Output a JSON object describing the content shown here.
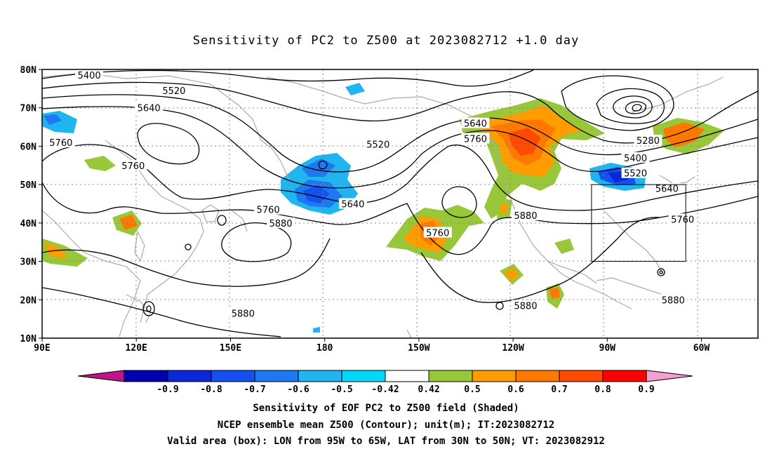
{
  "title": "Sensitivity of PC2 to Z500 at 2023082712 +1.0 day",
  "map": {
    "lat_labels": [
      "80N",
      "70N",
      "60N",
      "50N",
      "40N",
      "30N",
      "20N",
      "10N"
    ],
    "lat_values": [
      80,
      70,
      60,
      50,
      40,
      30,
      20,
      10
    ],
    "lon_labels": [
      "90E",
      "120E",
      "150E",
      "180",
      "150W",
      "120W",
      "90W",
      "60W"
    ],
    "lon_values": [
      90,
      120,
      150,
      180,
      210,
      240,
      270,
      300
    ],
    "lon_range": [
      90,
      318
    ],
    "lat_range": [
      10,
      80
    ],
    "contour_labels": [
      {
        "text": "5400",
        "lon": 105,
        "lat": 78.5
      },
      {
        "text": "5520",
        "lon": 132,
        "lat": 74.5
      },
      {
        "text": "5640",
        "lon": 124,
        "lat": 70.0
      },
      {
        "text": "5760",
        "lon": 96,
        "lat": 61.0
      },
      {
        "text": "5760",
        "lon": 119,
        "lat": 55.0
      },
      {
        "text": "5760",
        "lon": 162,
        "lat": 43.5
      },
      {
        "text": "5880",
        "lon": 166,
        "lat": 40.0
      },
      {
        "text": "5880",
        "lon": 154,
        "lat": 16.5
      },
      {
        "text": "5520",
        "lon": 197,
        "lat": 60.5
      },
      {
        "text": "5640",
        "lon": 189,
        "lat": 45.0
      },
      {
        "text": "5760",
        "lon": 216,
        "lat": 37.5
      },
      {
        "text": "5640",
        "lon": 228,
        "lat": 66.0
      },
      {
        "text": "5760",
        "lon": 228,
        "lat": 62.0
      },
      {
        "text": "5880",
        "lon": 244,
        "lat": 42.0
      },
      {
        "text": "5880",
        "lon": 244,
        "lat": 18.5
      },
      {
        "text": "5280",
        "lon": 283,
        "lat": 61.5
      },
      {
        "text": "5400",
        "lon": 279,
        "lat": 57.0
      },
      {
        "text": "5520",
        "lon": 279,
        "lat": 53.0
      },
      {
        "text": "5640",
        "lon": 289,
        "lat": 49.0
      },
      {
        "text": "5760",
        "lon": 294,
        "lat": 41.0
      },
      {
        "text": "5880",
        "lon": 291,
        "lat": 20.0
      }
    ],
    "valid_box": {
      "lon_min": 265,
      "lon_max": 295,
      "lat_min": 30,
      "lat_max": 50
    }
  },
  "colorbar": {
    "labels": [
      "-0.9",
      "-0.8",
      "-0.7",
      "-0.6",
      "-0.5",
      "-0.42",
      "0.42",
      "0.5",
      "0.6",
      "0.7",
      "0.8",
      "0.9"
    ],
    "colors": [
      "#0000b0",
      "#0a28d8",
      "#1550f0",
      "#1e78f0",
      "#20b4f0",
      "#00d8f8",
      "#ffffff",
      "#98c83a",
      "#ff9c00",
      "#ff7800",
      "#ff4a00",
      "#ff0000"
    ],
    "low_extend_color": "#c0148c",
    "high_extend_color": "#f4a0d0"
  },
  "captions": {
    "line1": "Sensitivity of EOF PC2 to Z500 field (Shaded)",
    "line2": "NCEP ensemble mean Z500 (Contour); unit(m); IT:2023082712",
    "line3": "Valid area (box): LON from 95W to 65W, LAT from 30N to 50N; VT: 2023082912"
  }
}
